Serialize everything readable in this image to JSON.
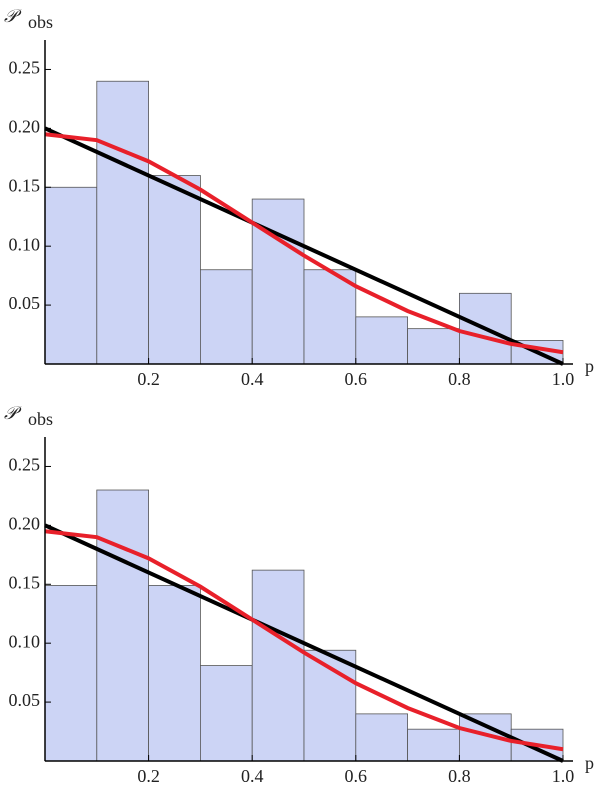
{
  "chart_data": [
    {
      "type": "histogram",
      "ylabel": {
        "text": "𝒫",
        "subscript": "obs"
      },
      "xlabel": "p",
      "bins": [
        0,
        0.1,
        0.2,
        0.3,
        0.4,
        0.5,
        0.6,
        0.7,
        0.8,
        0.9,
        1.0
      ],
      "values": [
        0.15,
        0.24,
        0.16,
        0.08,
        0.14,
        0.08,
        0.04,
        0.03,
        0.06,
        0.02
      ],
      "color": "#ccd4f5",
      "series": [
        {
          "color": "#000000",
          "x": [
            0,
            1.0
          ],
          "values": [
            0.2,
            0
          ]
        },
        {
          "color": "#e8202a",
          "x": [
            0,
            0.1,
            0.2,
            0.3,
            0.4,
            0.5,
            0.6,
            0.7,
            0.8,
            0.9,
            1.0
          ],
          "values": [
            0.195,
            0.19,
            0.172,
            0.148,
            0.12,
            0.092,
            0.066,
            0.045,
            0.028,
            0.017,
            0.01
          ]
        }
      ],
      "xlim": [
        0,
        1.0
      ],
      "ylim": [
        0,
        0.275
      ],
      "xticks": [
        0.2,
        0.4,
        0.6,
        0.8,
        {
          "value": 1.0,
          "label": "1.0"
        }
      ],
      "yticks": [
        0.05,
        {
          "value": 0.1,
          "label": "0.10"
        },
        0.15,
        {
          "value": 0.2,
          "label": "0.20"
        },
        0.25
      ]
    },
    {
      "type": "histogram",
      "ylabel": {
        "text": "𝒫",
        "subscript": "obs"
      },
      "xlabel": "p",
      "bins": [
        0,
        0.1,
        0.2,
        0.3,
        0.4,
        0.5,
        0.6,
        0.7,
        0.8,
        0.9,
        1.0
      ],
      "values": [
        0.149,
        0.23,
        0.149,
        0.081,
        0.162,
        0.094,
        0.04,
        0.027,
        0.04,
        0.027
      ],
      "color": "#ccd4f5",
      "series": [
        {
          "color": "#000000",
          "x": [
            0,
            1.0
          ],
          "values": [
            0.2,
            0
          ]
        },
        {
          "color": "#e8202a",
          "x": [
            0,
            0.1,
            0.2,
            0.3,
            0.4,
            0.5,
            0.6,
            0.7,
            0.8,
            0.9,
            1.0
          ],
          "values": [
            0.195,
            0.19,
            0.172,
            0.148,
            0.12,
            0.092,
            0.066,
            0.045,
            0.028,
            0.017,
            0.01
          ]
        }
      ],
      "xlim": [
        0,
        1.0
      ],
      "ylim": [
        0,
        0.275
      ],
      "xticks": [
        0.2,
        0.4,
        0.6,
        0.8,
        {
          "value": 1.0,
          "label": "1.0"
        }
      ],
      "yticks": [
        0.05,
        {
          "value": 0.1,
          "label": "0.10"
        },
        0.15,
        {
          "value": 0.2,
          "label": "0.20"
        },
        0.25
      ]
    }
  ]
}
